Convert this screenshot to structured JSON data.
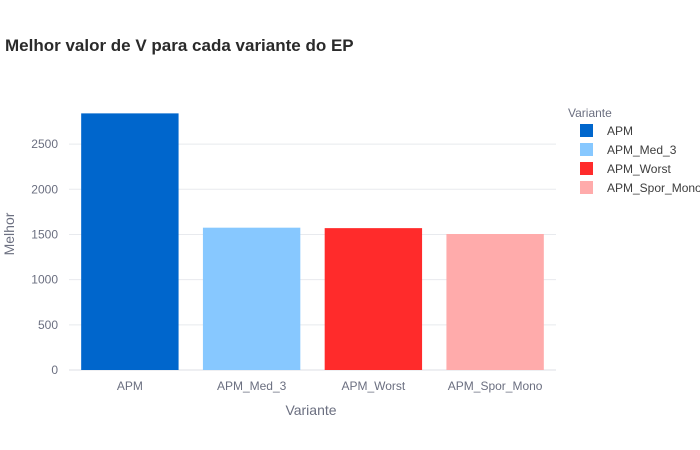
{
  "chart_data": {
    "type": "bar",
    "title": "Melhor valor de V para cada variante do EP",
    "xlabel": "Variante",
    "ylabel": "Melhor",
    "categories": [
      "APM",
      "APM_Med_3",
      "APM_Worst",
      "APM_Spor_Mono"
    ],
    "values": [
      2840,
      1575,
      1570,
      1505
    ],
    "colors": [
      "#0066cc",
      "#87c8ff",
      "#ff2b2b",
      "#ffabab"
    ],
    "ylim": [
      0,
      2988
    ],
    "yticks": [
      0,
      500,
      1000,
      1500,
      2000,
      2500
    ],
    "grid": true,
    "legend": {
      "title": "Variante",
      "placement": "right",
      "entries": [
        "APM",
        "APM_Med_3",
        "APM_Worst",
        "APM_Spor_Mono"
      ]
    }
  }
}
